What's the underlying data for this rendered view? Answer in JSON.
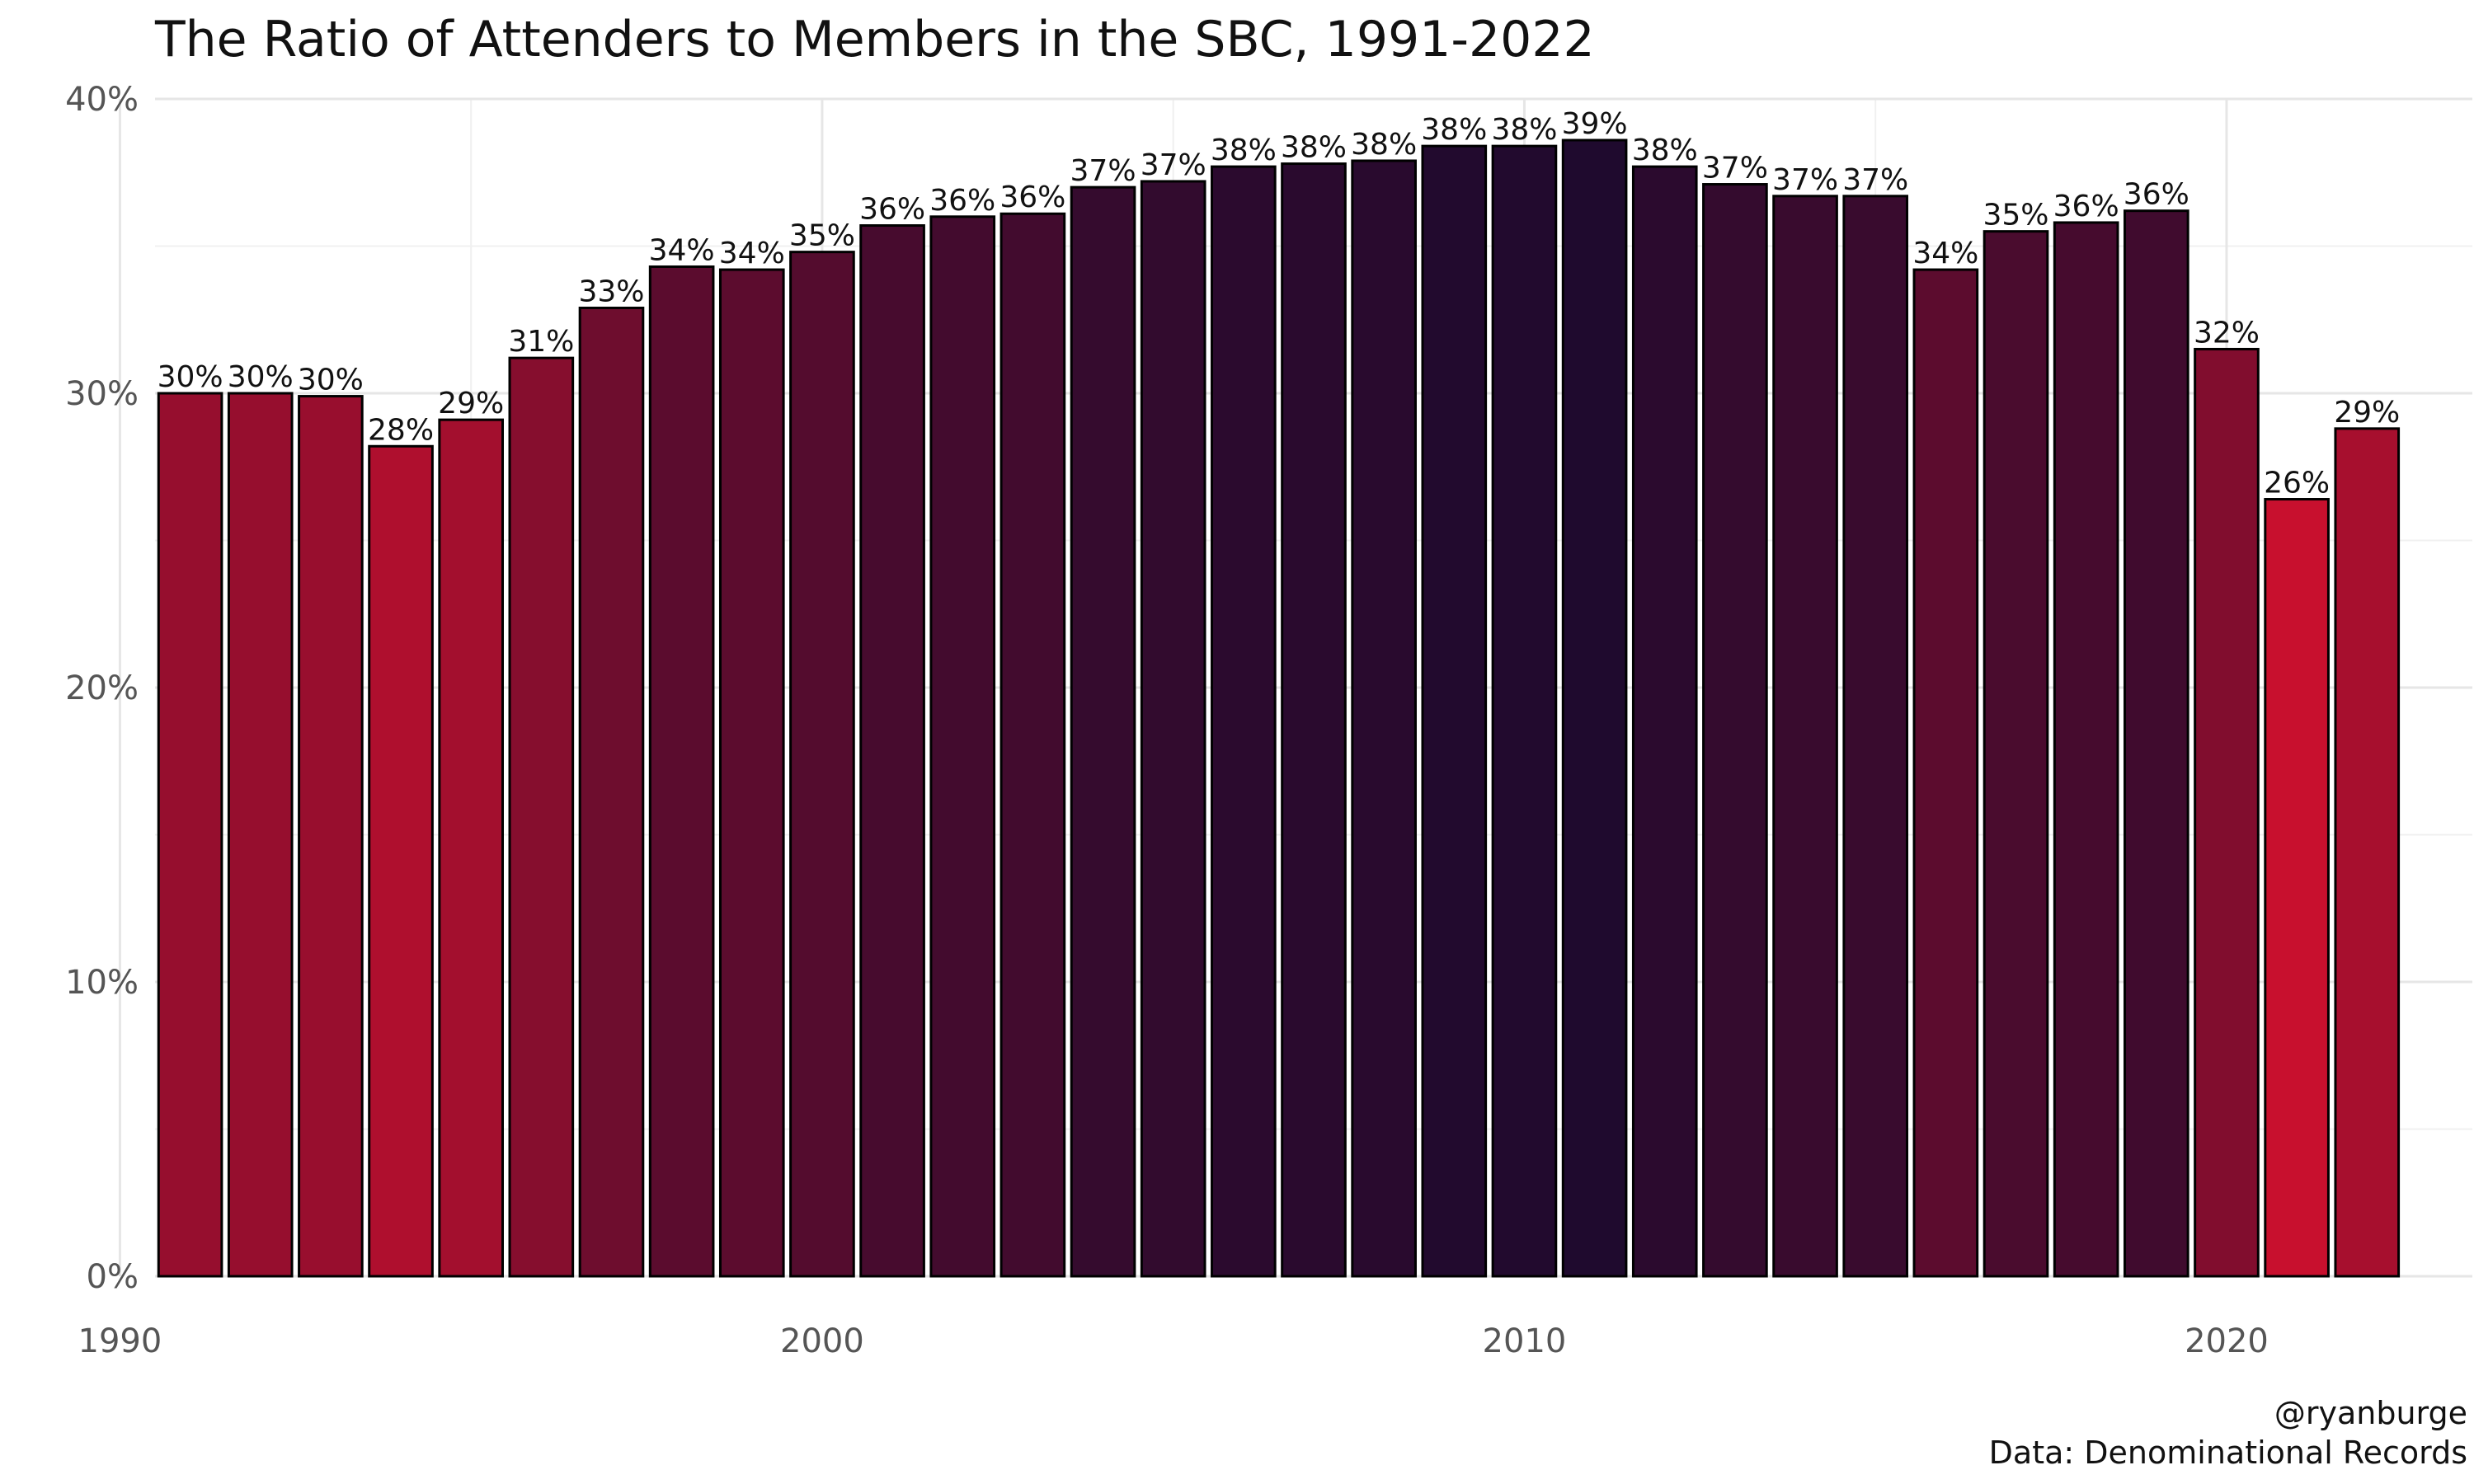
{
  "title": "The Ratio of Attenders to Members in the SBC, 1991-2022",
  "caption": [
    "@ryanburge",
    "Data: Denominational Records"
  ],
  "chart_data": {
    "type": "bar",
    "title": "The Ratio of Attenders to Members in the SBC, 1991-2022",
    "xlabel": "",
    "ylabel": "",
    "x": [
      1991,
      1992,
      1993,
      1994,
      1995,
      1996,
      1997,
      1998,
      1999,
      2000,
      2001,
      2002,
      2003,
      2004,
      2005,
      2006,
      2007,
      2008,
      2009,
      2010,
      2011,
      2012,
      2013,
      2014,
      2015,
      2016,
      2017,
      2018,
      2019,
      2020,
      2021,
      2022
    ],
    "values": [
      30.0,
      30.0,
      29.9,
      28.2,
      29.1,
      31.2,
      32.9,
      34.3,
      34.2,
      34.8,
      35.7,
      36.0,
      36.1,
      37.0,
      37.2,
      37.7,
      37.8,
      37.9,
      38.4,
      38.4,
      38.6,
      37.7,
      37.1,
      36.7,
      36.7,
      34.2,
      35.5,
      35.8,
      36.2,
      31.5,
      26.4,
      28.8
    ],
    "data_labels": [
      "30%",
      "30%",
      "30%",
      "28%",
      "29%",
      "31%",
      "33%",
      "34%",
      "34%",
      "35%",
      "36%",
      "36%",
      "36%",
      "37%",
      "37%",
      "38%",
      "38%",
      "38%",
      "38%",
      "38%",
      "39%",
      "38%",
      "37%",
      "37%",
      "37%",
      "34%",
      "35%",
      "36%",
      "36%",
      "32%",
      "26%",
      "29%"
    ],
    "xlim": [
      1990.5,
      2023.5
    ],
    "ylim": [
      0,
      40
    ],
    "x_ticks": [
      1990,
      2000,
      2010,
      2020
    ],
    "x_tick_labels": [
      "1990",
      "2000",
      "2010",
      "2020"
    ],
    "y_ticks": [
      0,
      10,
      20,
      30,
      40
    ],
    "y_tick_labels": [
      "0%",
      "10%",
      "20%",
      "30%",
      "40%"
    ],
    "grid": true,
    "legend": "none",
    "color_scale": {
      "low": "#c8102e",
      "high": "#1f0a2e"
    }
  }
}
